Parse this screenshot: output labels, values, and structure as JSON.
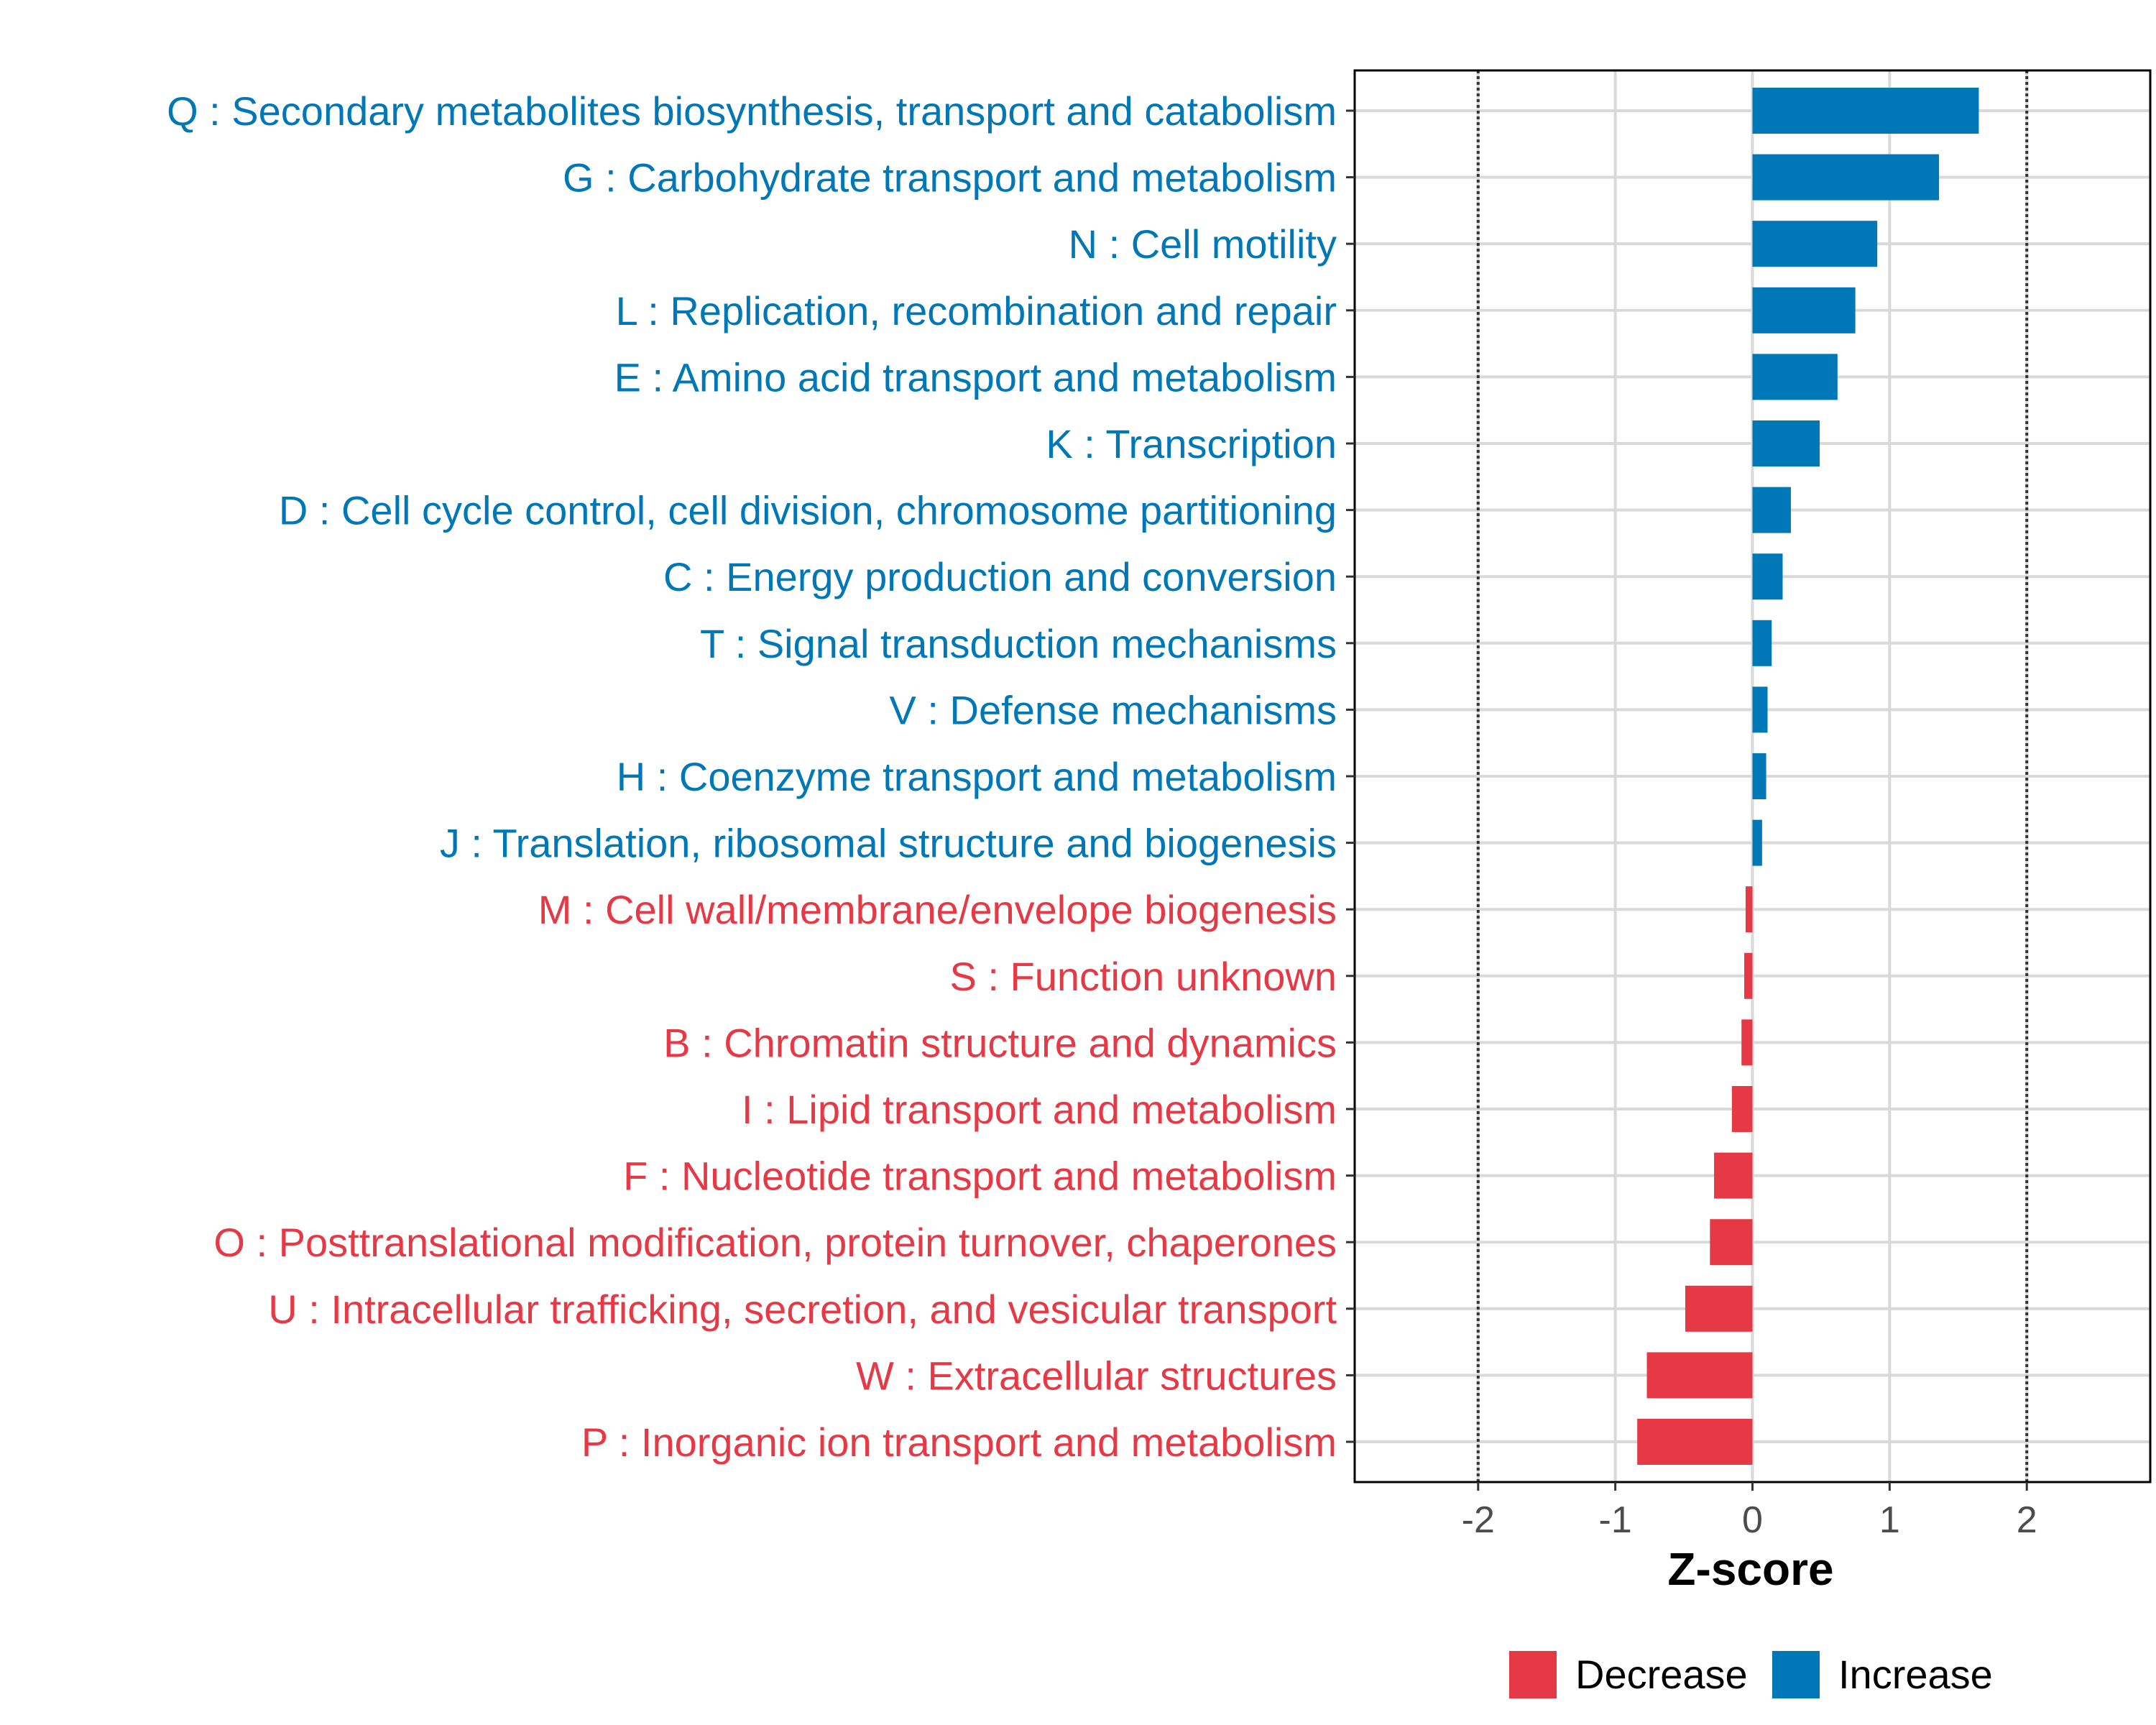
{
  "chart_data": {
    "type": "bar",
    "orientation": "horizontal",
    "xlabel": "Z-score",
    "ylabel": "",
    "xlim": [
      -2.9,
      2.9
    ],
    "x_ticks": [
      -2,
      -1,
      0,
      1,
      2
    ],
    "x_tick_labels": [
      "-2",
      "-1",
      "0",
      "1",
      "2"
    ],
    "reference_lines": [
      -2,
      2
    ],
    "grid": true,
    "legend": {
      "placement": "bottom",
      "entries": [
        {
          "name": "Decrease",
          "color": "#E63946"
        },
        {
          "name": "Increase",
          "color": "#0077B6"
        }
      ]
    },
    "categories": [
      "Q : Secondary metabolites biosynthesis, transport and catabolism",
      "G : Carbohydrate transport and metabolism",
      "N : Cell motility",
      "L : Replication, recombination and repair",
      "E : Amino acid transport and metabolism",
      "K : Transcription",
      "D : Cell cycle control, cell division, chromosome partitioning",
      "C : Energy production and conversion",
      "T : Signal transduction mechanisms",
      "V : Defense mechanisms",
      "H : Coenzyme transport and metabolism",
      "J : Translation, ribosomal structure and biogenesis",
      "M : Cell wall/membrane/envelope biogenesis",
      "S : Function unknown",
      "B : Chromatin structure and dynamics",
      "I : Lipid transport and metabolism",
      "F : Nucleotide transport and metabolism",
      "O : Posttranslational modification, protein turnover, chaperones",
      "U : Intracellular trafficking, secretion, and vesicular transport",
      "W : Extracellular structures",
      "P : Inorganic ion transport and metabolism"
    ],
    "values": [
      1.65,
      1.36,
      0.91,
      0.75,
      0.62,
      0.49,
      0.28,
      0.22,
      0.14,
      0.11,
      0.1,
      0.07,
      -0.05,
      -0.06,
      -0.08,
      -0.15,
      -0.28,
      -0.31,
      -0.49,
      -0.77,
      -0.84
    ],
    "direction": [
      "Increase",
      "Increase",
      "Increase",
      "Increase",
      "Increase",
      "Increase",
      "Increase",
      "Increase",
      "Increase",
      "Increase",
      "Increase",
      "Increase",
      "Decrease",
      "Decrease",
      "Decrease",
      "Decrease",
      "Decrease",
      "Decrease",
      "Decrease",
      "Decrease",
      "Decrease"
    ]
  }
}
